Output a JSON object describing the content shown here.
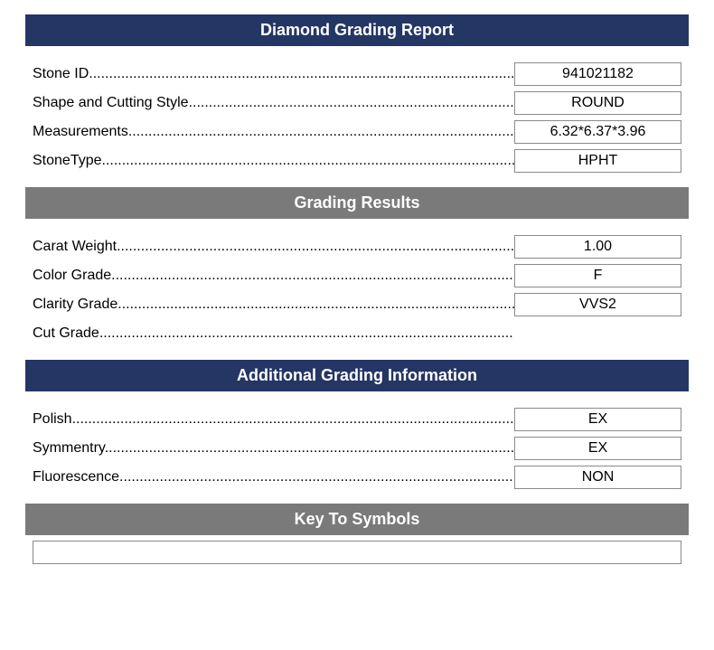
{
  "colors": {
    "header_navy": "#243663",
    "header_gray": "#7a7a7a",
    "border": "#8a8a8a",
    "text": "#000000",
    "header_text": "#ffffff",
    "background": "#ffffff"
  },
  "sections": {
    "main": {
      "title": "Diamond Grading Report",
      "rows": [
        {
          "label": "Stone ID",
          "value": "941021182"
        },
        {
          "label": "Shape and Cutting Style",
          "value": "ROUND"
        },
        {
          "label": "Measurements",
          "value": "6.32*6.37*3.96"
        },
        {
          "label": "StoneType",
          "value": "HPHT"
        }
      ]
    },
    "grading": {
      "title": "Grading Results",
      "rows": [
        {
          "label": "Carat Weight",
          "value": "1.00"
        },
        {
          "label": "Color Grade",
          "value": "F"
        },
        {
          "label": "Clarity Grade",
          "value": "VVS2"
        },
        {
          "label": "Cut Grade",
          "value": ""
        }
      ]
    },
    "additional": {
      "title": "Additional Grading Information",
      "rows": [
        {
          "label": "Polish",
          "value": "EX"
        },
        {
          "label": "Symmentry",
          "value": "EX"
        },
        {
          "label": "Fluorescence",
          "value": "NON"
        }
      ]
    },
    "symbols": {
      "title": "Key To Symbols"
    }
  }
}
